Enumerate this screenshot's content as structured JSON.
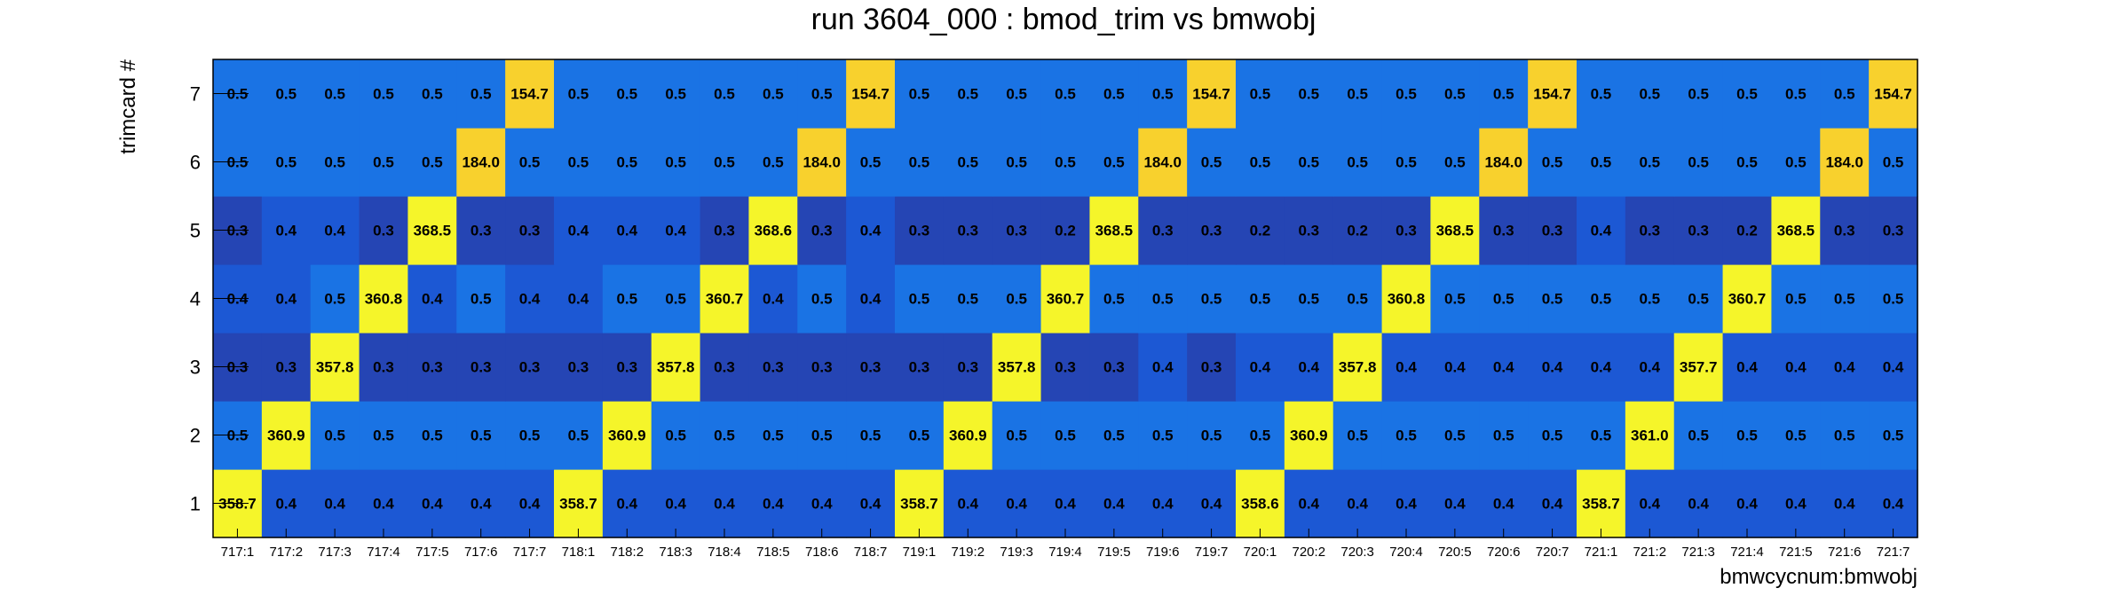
{
  "chart_data": {
    "type": "heatmap",
    "title": "run 3604_000 : bmod_trim vs bmwobj",
    "xlabel": "bmwcycnum:bmwobj",
    "ylabel": "trimcard #",
    "x_categories": [
      "717:1",
      "717:2",
      "717:3",
      "717:4",
      "717:5",
      "717:6",
      "717:7",
      "718:1",
      "718:2",
      "718:3",
      "718:4",
      "718:5",
      "718:6",
      "718:7",
      "719:1",
      "719:2",
      "719:3",
      "719:4",
      "719:5",
      "719:6",
      "719:7",
      "720:1",
      "720:2",
      "720:3",
      "720:4",
      "720:5",
      "720:6",
      "720:7",
      "721:1",
      "721:2",
      "721:3",
      "721:4",
      "721:5",
      "721:6",
      "721:7"
    ],
    "y_categories": [
      "1",
      "2",
      "3",
      "4",
      "5",
      "6",
      "7"
    ],
    "values": [
      [
        358.7,
        0.4,
        0.4,
        0.4,
        0.4,
        0.4,
        0.4,
        358.7,
        0.4,
        0.4,
        0.4,
        0.4,
        0.4,
        0.4,
        358.7,
        0.4,
        0.4,
        0.4,
        0.4,
        0.4,
        0.4,
        358.6,
        0.4,
        0.4,
        0.4,
        0.4,
        0.4,
        0.4,
        358.7,
        0.4,
        0.4,
        0.4,
        0.4,
        0.4,
        0.4
      ],
      [
        0.5,
        360.9,
        0.5,
        0.5,
        0.5,
        0.5,
        0.5,
        0.5,
        360.9,
        0.5,
        0.5,
        0.5,
        0.5,
        0.5,
        0.5,
        360.9,
        0.5,
        0.5,
        0.5,
        0.5,
        0.5,
        0.5,
        360.9,
        0.5,
        0.5,
        0.5,
        0.5,
        0.5,
        0.5,
        361.0,
        0.5,
        0.5,
        0.5,
        0.5,
        0.5
      ],
      [
        0.3,
        0.3,
        357.8,
        0.3,
        0.3,
        0.3,
        0.3,
        0.3,
        0.3,
        357.8,
        0.3,
        0.3,
        0.3,
        0.3,
        0.3,
        0.3,
        357.8,
        0.3,
        0.3,
        0.4,
        0.3,
        0.4,
        0.4,
        357.8,
        0.4,
        0.4,
        0.4,
        0.4,
        0.4,
        0.4,
        357.7,
        0.4,
        0.4,
        0.4,
        0.4
      ],
      [
        0.4,
        0.4,
        0.5,
        360.8,
        0.4,
        0.5,
        0.4,
        0.4,
        0.5,
        0.5,
        360.7,
        0.4,
        0.5,
        0.4,
        0.5,
        0.5,
        0.5,
        360.7,
        0.5,
        0.5,
        0.5,
        0.5,
        0.5,
        0.5,
        360.8,
        0.5,
        0.5,
        0.5,
        0.5,
        0.5,
        0.5,
        360.7,
        0.5,
        0.5,
        0.5
      ],
      [
        0.3,
        0.4,
        0.4,
        0.3,
        368.5,
        0.3,
        0.3,
        0.4,
        0.4,
        0.4,
        0.3,
        368.6,
        0.3,
        0.4,
        0.3,
        0.3,
        0.3,
        0.2,
        368.5,
        0.3,
        0.3,
        0.2,
        0.3,
        0.2,
        0.3,
        368.5,
        0.3,
        0.3,
        0.4,
        0.3,
        0.3,
        0.2,
        368.5,
        0.3,
        0.3
      ],
      [
        0.5,
        0.5,
        0.5,
        0.5,
        0.5,
        184.0,
        0.5,
        0.5,
        0.5,
        0.5,
        0.5,
        0.5,
        184.0,
        0.5,
        0.5,
        0.5,
        0.5,
        0.5,
        0.5,
        184.0,
        0.5,
        0.5,
        0.5,
        0.5,
        0.5,
        0.5,
        184.0,
        0.5,
        0.5,
        0.5,
        0.5,
        0.5,
        0.5,
        184.0,
        0.5
      ],
      [
        0.5,
        0.5,
        0.5,
        0.5,
        0.5,
        0.5,
        154.7,
        0.5,
        0.5,
        0.5,
        0.5,
        0.5,
        0.5,
        154.7,
        0.5,
        0.5,
        0.5,
        0.5,
        0.5,
        0.5,
        154.7,
        0.5,
        0.5,
        0.5,
        0.5,
        0.5,
        0.5,
        154.7,
        0.5,
        0.5,
        0.5,
        0.5,
        0.5,
        0.5,
        154.7
      ]
    ],
    "colors": {
      "very_high": "#f5f52a",
      "high": "#f8d12d",
      "mid_low": "#1a73e4",
      "low": "#1c58d4",
      "lowest": "#2545b4",
      "axis": "#000000"
    }
  }
}
